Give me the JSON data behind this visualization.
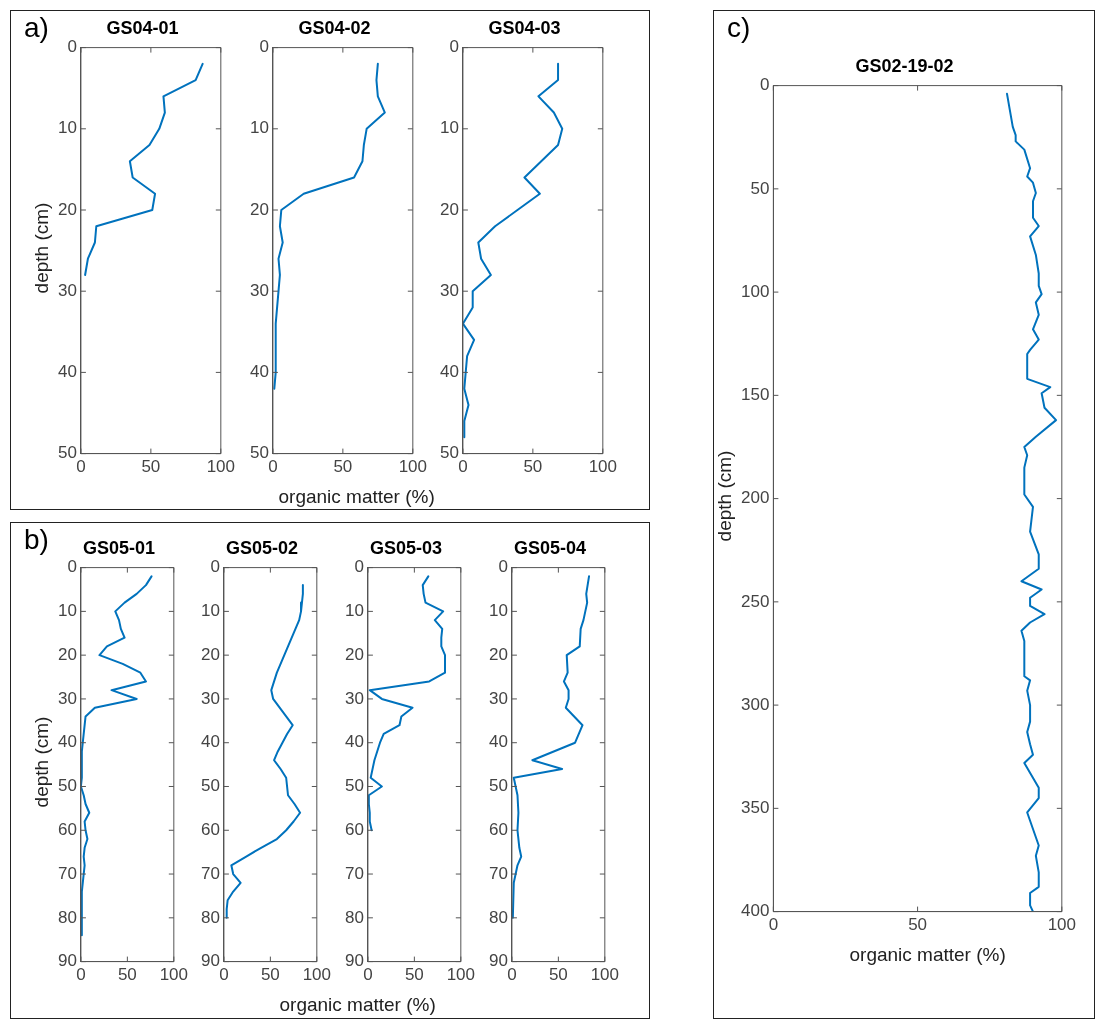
{
  "chart_data": [
    {
      "type": "line",
      "title": "GS04-01",
      "ylabel": "depth (cm)",
      "annotations": [
        "a)"
      ],
      "color": "#0072bd",
      "xlim": [
        0,
        100
      ],
      "xticks": [
        0,
        50,
        100
      ],
      "ylim": [
        50,
        0
      ],
      "yticks": [
        0,
        10,
        20,
        30,
        40,
        50
      ],
      "x": [
        87,
        82,
        59,
        60,
        56,
        49,
        35,
        37,
        53,
        51,
        11,
        10,
        5,
        3
      ],
      "values": [
        2,
        4,
        6,
        8,
        10,
        12,
        14,
        16,
        18,
        20,
        22,
        24,
        26,
        28
      ]
    },
    {
      "type": "line",
      "title": "GS04-02",
      "xlabel": "organic matter (%)",
      "color": "#0072bd",
      "xlim": [
        0,
        100
      ],
      "xticks": [
        0,
        50,
        100
      ],
      "ylim": [
        50,
        0
      ],
      "yticks": [
        0,
        10,
        20,
        30,
        40,
        50
      ],
      "x": [
        75,
        74,
        75,
        80,
        67,
        65,
        64,
        58,
        22,
        6,
        5,
        7,
        4,
        5,
        4,
        2,
        2,
        1
      ],
      "values": [
        2,
        4,
        6,
        8,
        10,
        12,
        14,
        16,
        18,
        20,
        22,
        24,
        26,
        28,
        30,
        34,
        40,
        42
      ]
    },
    {
      "type": "line",
      "title": "GS04-03",
      "color": "#0072bd",
      "xlim": [
        0,
        100
      ],
      "xticks": [
        0,
        50,
        100
      ],
      "ylim": [
        50,
        0
      ],
      "yticks": [
        0,
        10,
        20,
        30,
        40,
        50
      ],
      "x": [
        68,
        68,
        54,
        65,
        71,
        68,
        56,
        44,
        55,
        39,
        23,
        11,
        13,
        20,
        7,
        7,
        0,
        8,
        3,
        1,
        4,
        1,
        1
      ],
      "values": [
        2,
        4,
        6,
        8,
        10,
        12,
        14,
        16,
        18,
        20,
        22,
        24,
        26,
        28,
        30,
        32,
        34,
        36,
        38,
        42,
        44,
        46,
        48
      ]
    },
    {
      "type": "line",
      "title": "GS05-01",
      "ylabel": "depth (cm)",
      "annotations": [
        "b)"
      ],
      "color": "#0072bd",
      "xlim": [
        0,
        100
      ],
      "xticks": [
        0,
        50,
        100
      ],
      "ylim": [
        90,
        0
      ],
      "yticks": [
        0,
        10,
        20,
        30,
        40,
        50,
        60,
        70,
        80,
        90
      ],
      "x": [
        76,
        70,
        60,
        47,
        37,
        41,
        43,
        47,
        28,
        20,
        45,
        64,
        70,
        33,
        60,
        15,
        5,
        1,
        1,
        0,
        3,
        5,
        9,
        4,
        5,
        7,
        4,
        3,
        4,
        3,
        1,
        1
      ],
      "values": [
        2,
        4,
        6,
        8,
        10,
        12,
        14,
        16,
        18,
        20,
        22,
        24,
        26,
        28,
        30,
        32,
        34,
        42,
        48,
        50,
        52,
        54,
        56,
        58,
        60,
        62,
        64,
        66,
        68,
        70,
        74,
        84
      ]
    },
    {
      "type": "line",
      "title": "GS05-02",
      "xlabel": "organic matter (%)",
      "color": "#0072bd",
      "xlim": [
        0,
        100
      ],
      "xticks": [
        0,
        50,
        100
      ],
      "ylim": [
        90,
        0
      ],
      "yticks": [
        0,
        10,
        20,
        30,
        40,
        50,
        60,
        70,
        80,
        90
      ],
      "x": [
        85,
        85,
        84,
        83,
        81,
        57,
        51,
        53,
        67,
        74,
        68,
        63,
        58,
        54,
        61,
        67,
        68,
        69,
        76,
        82,
        75,
        67,
        57,
        40,
        24,
        8,
        10,
        18,
        10,
        4,
        3,
        3
      ],
      "values": [
        4,
        6,
        8,
        10,
        12,
        24,
        28,
        30,
        34,
        36,
        38,
        40,
        42,
        44,
        46,
        48,
        50,
        52,
        54,
        56,
        58,
        60,
        62,
        64,
        66,
        68,
        70,
        72,
        74,
        76,
        78,
        80
      ]
    },
    {
      "type": "line",
      "title": "GS05-03",
      "color": "#0072bd",
      "xlim": [
        0,
        100
      ],
      "xticks": [
        0,
        50,
        100
      ],
      "ylim": [
        90,
        0
      ],
      "yticks": [
        0,
        10,
        20,
        30,
        40,
        50,
        60,
        70,
        80,
        90
      ],
      "x": [
        65,
        59,
        60,
        62,
        81,
        72,
        80,
        79,
        79,
        83,
        83,
        66,
        2,
        15,
        48,
        36,
        34,
        17,
        13,
        10,
        7,
        3,
        15,
        1,
        1,
        2,
        2,
        4
      ],
      "values": [
        2,
        4,
        6,
        8,
        10,
        12,
        14,
        16,
        18,
        20,
        24,
        26,
        28,
        30,
        32,
        34,
        36,
        38,
        40,
        42,
        44,
        48,
        50,
        52,
        54,
        56,
        58,
        60
      ]
    },
    {
      "type": "line",
      "title": "GS05-04",
      "color": "#0072bd",
      "xlim": [
        0,
        100
      ],
      "xticks": [
        0,
        50,
        100
      ],
      "ylim": [
        90,
        0
      ],
      "yticks": [
        0,
        10,
        20,
        30,
        40,
        50,
        60,
        70,
        80,
        90
      ],
      "x": [
        83,
        80,
        81,
        77,
        74,
        73,
        59,
        60,
        56,
        61,
        61,
        58,
        76,
        68,
        22,
        54,
        2,
        6,
        7,
        6,
        8,
        10,
        6,
        2,
        1
      ],
      "values": [
        2,
        6,
        8,
        12,
        14,
        18,
        20,
        24,
        26,
        28,
        30,
        32,
        36,
        40,
        44,
        46,
        48,
        52,
        56,
        60,
        64,
        66,
        68,
        72,
        80
      ]
    },
    {
      "type": "line",
      "title": "GS02-19-02",
      "xlabel": "organic matter (%)",
      "ylabel": "depth (cm)",
      "annotations": [
        "c)"
      ],
      "color": "#0072bd",
      "xlim": [
        0,
        100
      ],
      "xticks": [
        0,
        50,
        100
      ],
      "ylim": [
        400,
        0
      ],
      "yticks": [
        0,
        50,
        100,
        150,
        200,
        250,
        300,
        350,
        400
      ],
      "x": [
        81,
        82,
        83,
        84,
        84,
        87,
        89,
        88,
        90,
        91,
        90,
        90,
        92,
        89,
        91,
        92,
        92,
        93,
        91,
        92,
        90,
        92,
        89,
        88,
        88,
        96,
        93,
        94,
        98,
        91,
        87,
        88,
        87,
        87,
        90,
        89,
        92,
        92,
        86,
        93,
        89,
        89,
        94,
        89,
        86,
        87,
        87,
        89,
        88,
        89,
        89,
        88,
        89,
        90,
        87,
        92,
        92,
        88,
        90,
        92,
        91,
        92,
        92,
        89,
        89,
        90
      ],
      "values": [
        4,
        12,
        20,
        24,
        27,
        31,
        40,
        44,
        47,
        52,
        56,
        64,
        68,
        73,
        82,
        91,
        97,
        101,
        105,
        111,
        118,
        123,
        128,
        130,
        142,
        146,
        149,
        156,
        162,
        170,
        175,
        179,
        185,
        198,
        204,
        216,
        227,
        234,
        240,
        244,
        248,
        252,
        256,
        260,
        264,
        269,
        286,
        288,
        293,
        300,
        308,
        313,
        319,
        324,
        328,
        340,
        345,
        352,
        360,
        368,
        373,
        381,
        388,
        391,
        397,
        400
      ]
    }
  ]
}
